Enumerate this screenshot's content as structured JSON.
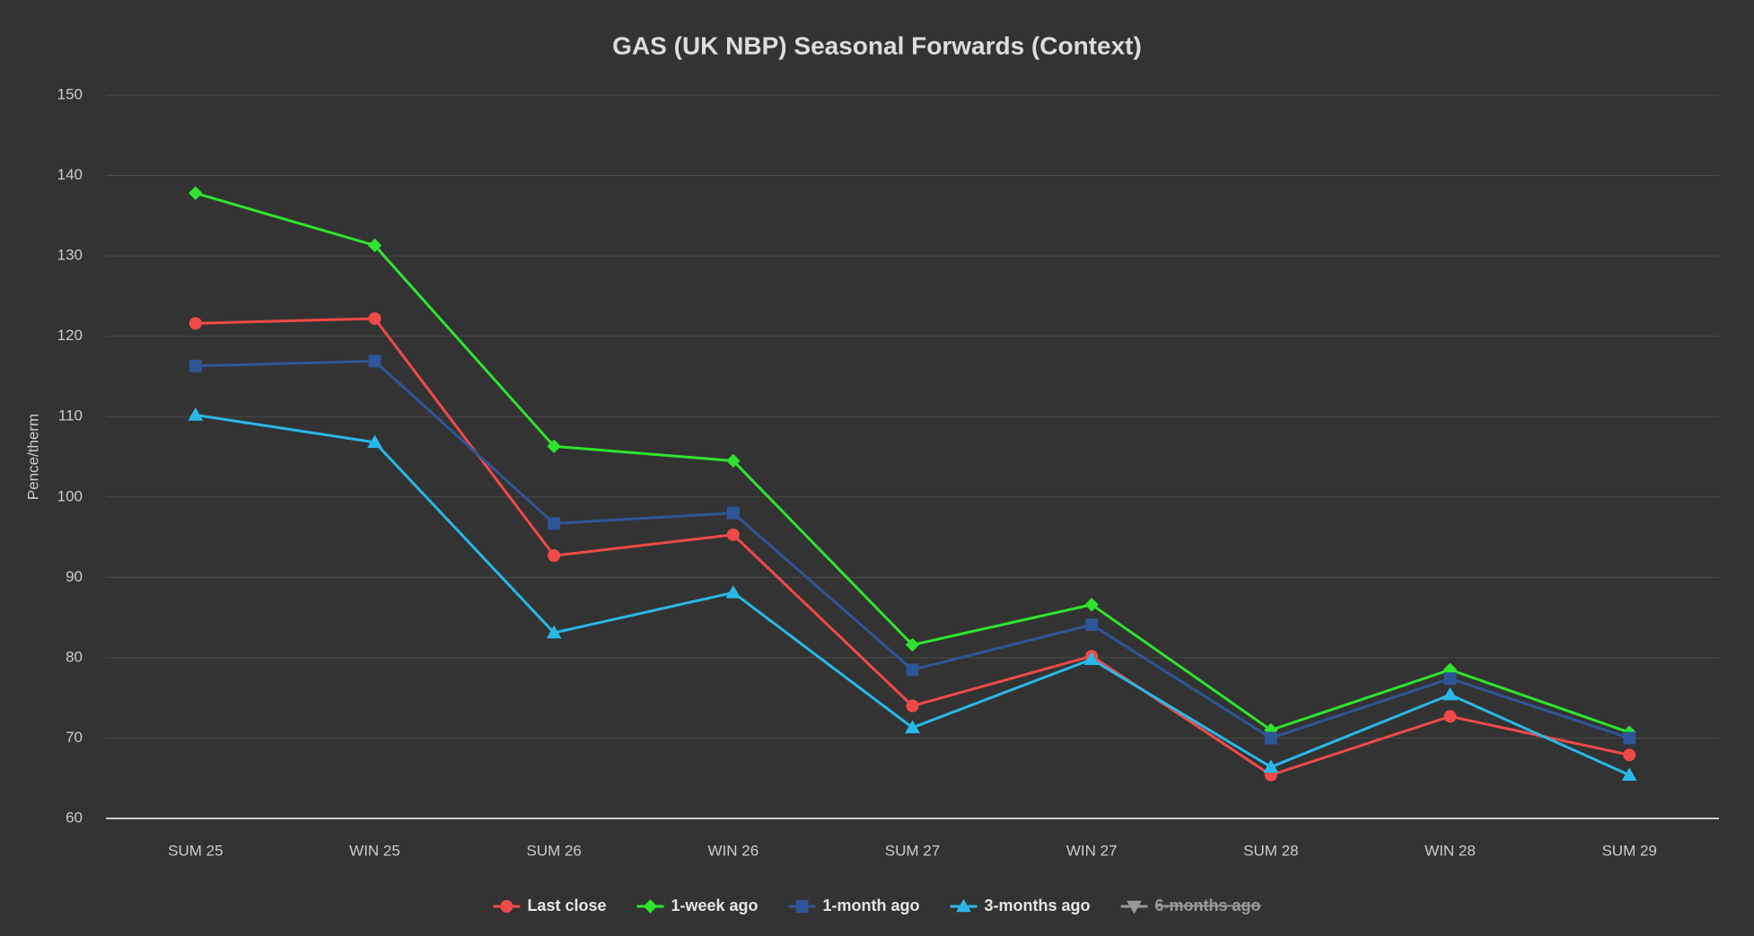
{
  "chart_data": {
    "type": "line",
    "title": "GAS (UK NBP) Seasonal Forwards (Context)",
    "y_label": "Pence/therm",
    "categories": [
      "SUM 25",
      "WIN 25",
      "SUM 26",
      "WIN 26",
      "SUM 27",
      "WIN 27",
      "SUM 28",
      "WIN 28",
      "SUM 29"
    ],
    "series": [
      {
        "name": "Last close",
        "color": "#f04a48",
        "marker": "circle",
        "values": [
          121.6,
          122.2,
          92.7,
          95.3,
          74.0,
          80.2,
          65.4,
          72.7,
          67.9
        ]
      },
      {
        "name": "1-week ago",
        "color": "#2ee42e",
        "marker": "diamond",
        "values": [
          137.8,
          131.3,
          106.3,
          104.5,
          81.6,
          86.6,
          71.0,
          78.5,
          70.7
        ]
      },
      {
        "name": "1-month ago",
        "color": "#2e5597",
        "marker": "square",
        "values": [
          116.3,
          116.9,
          96.7,
          98.0,
          78.5,
          84.1,
          70.0,
          77.4,
          70.0
        ]
      },
      {
        "name": "3-months ago",
        "color": "#29b8e8",
        "marker": "triangle",
        "values": [
          110.2,
          106.8,
          83.1,
          88.1,
          71.3,
          79.8,
          66.4,
          75.4,
          65.4
        ]
      },
      {
        "name": "6-months ago",
        "color": "#999999",
        "marker": "triangle-down",
        "hidden": true,
        "values": [
          null,
          null,
          null,
          null,
          null,
          null,
          null,
          null,
          null
        ]
      }
    ],
    "ylim": [
      60,
      150
    ],
    "yticks": [
      60,
      70,
      80,
      90,
      100,
      110,
      120,
      130,
      140,
      150
    ],
    "grid": true,
    "legend": "bottom"
  }
}
